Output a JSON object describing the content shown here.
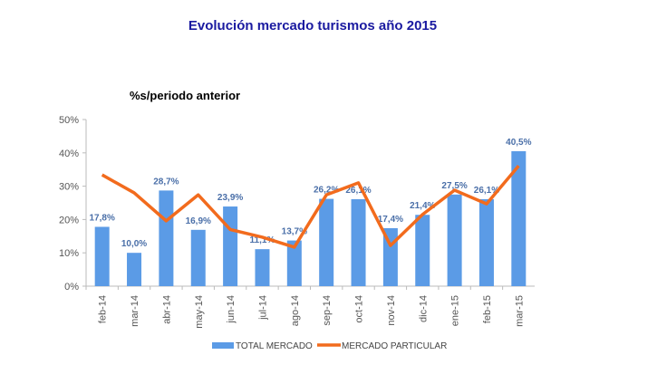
{
  "chart_data": {
    "type": "bar",
    "title": "Evolución mercado turismos año 2015",
    "subtitle": "%s/periodo anterior",
    "xlabel": "",
    "ylabel": "",
    "ylim": [
      0,
      50
    ],
    "yticks": [
      "0%",
      "10%",
      "20%",
      "30%",
      "40%",
      "50%"
    ],
    "grid": false,
    "legend_position": "bottom",
    "categories": [
      "feb-14",
      "mar-14",
      "abr-14",
      "may-14",
      "jun-14",
      "jul-14",
      "ago-14",
      "sep-14",
      "oct-14",
      "nov-14",
      "dic-14",
      "ene-15",
      "feb-15",
      "mar-15"
    ],
    "series": [
      {
        "name": "TOTAL MERCADO",
        "type": "bar",
        "color": "#5b9be6",
        "values": [
          17.8,
          10.0,
          28.7,
          16.9,
          23.9,
          11.1,
          13.7,
          26.2,
          26.1,
          17.4,
          21.4,
          27.5,
          26.1,
          40.5
        ],
        "labels": [
          "17,8%",
          "10,0%",
          "28,7%",
          "16,9%",
          "23,9%",
          "11,1%",
          "13,7%",
          "26,2%",
          "26,1%",
          "17,4%",
          "21,4%",
          "27,5%",
          "26,1%",
          "40,5%"
        ]
      },
      {
        "name": "MERCADO PARTICULAR",
        "type": "line",
        "color": "#f26b1d",
        "values": [
          33.4,
          28.0,
          19.6,
          27.4,
          17.0,
          14.7,
          11.7,
          27.4,
          31.0,
          12.2,
          21.5,
          28.8,
          24.7,
          36.1
        ]
      }
    ]
  }
}
